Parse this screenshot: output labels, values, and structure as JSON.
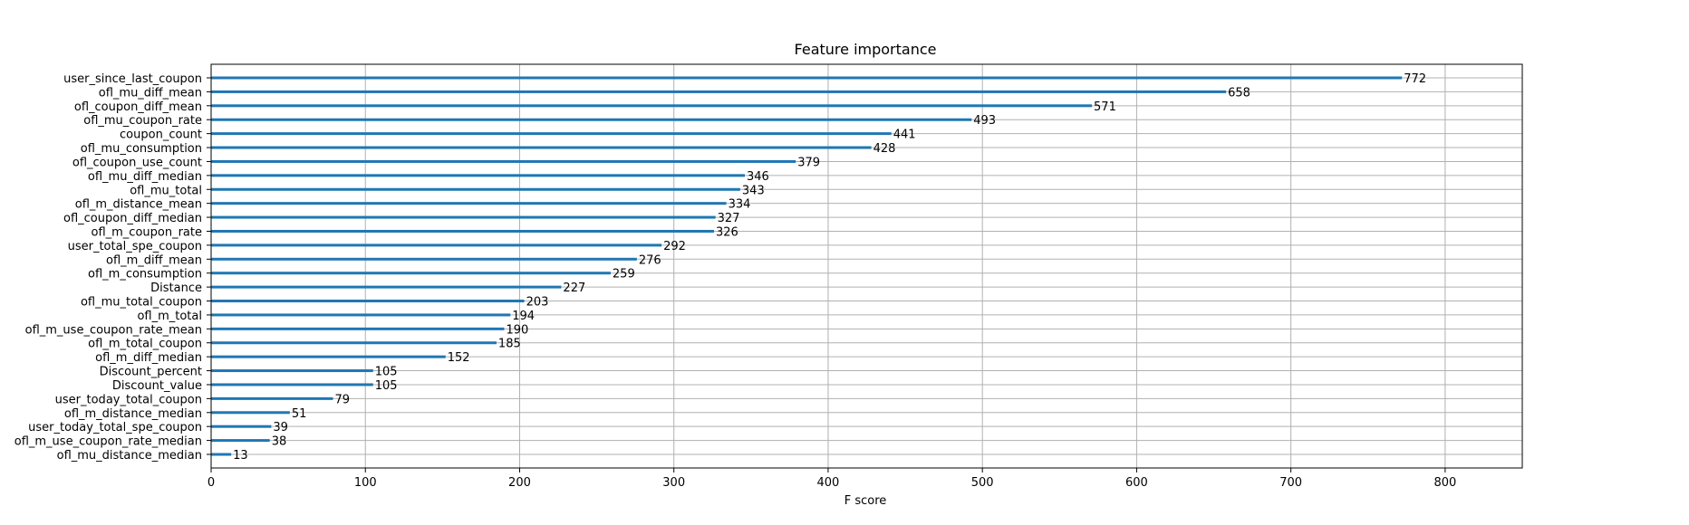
{
  "chart_data": {
    "type": "bar",
    "orientation": "horizontal",
    "title": "Feature importance",
    "xlabel": "F score",
    "ylabel": "",
    "xlim": [
      0,
      850
    ],
    "xticks": [
      0,
      100,
      200,
      300,
      400,
      500,
      600,
      700,
      800
    ],
    "grid": true,
    "bar_color": "#1f77b4",
    "categories": [
      "user_since_last_coupon",
      "ofl_mu_diff_mean",
      "ofl_coupon_diff_mean",
      "ofl_mu_coupon_rate",
      "coupon_count",
      "ofl_mu_consumption",
      "ofl_coupon_use_count",
      "ofl_mu_diff_median",
      "ofl_mu_total",
      "ofl_m_distance_mean",
      "ofl_coupon_diff_median",
      "ofl_m_coupon_rate",
      "user_total_spe_coupon",
      "ofl_m_diff_mean",
      "ofl_m_consumption",
      "Distance",
      "ofl_mu_total_coupon",
      "ofl_m_total",
      "ofl_m_use_coupon_rate_mean",
      "ofl_m_total_coupon",
      "ofl_m_diff_median",
      "Discount_percent",
      "Discount_value",
      "user_today_total_coupon",
      "ofl_m_distance_median",
      "user_today_total_spe_coupon",
      "ofl_m_use_coupon_rate_median",
      "ofl_mu_distance_median"
    ],
    "values": [
      772,
      658,
      571,
      493,
      441,
      428,
      379,
      346,
      343,
      334,
      327,
      326,
      292,
      276,
      259,
      227,
      203,
      194,
      190,
      185,
      152,
      105,
      105,
      79,
      51,
      39,
      38,
      13
    ]
  }
}
